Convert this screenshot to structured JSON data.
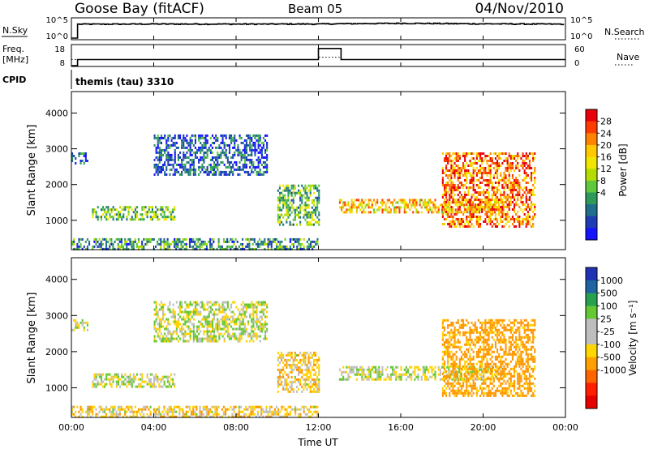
{
  "header": {
    "station": "Goose Bay (fitACF)",
    "beam": "Beam 05",
    "date": "04/Nov/2010"
  },
  "nsky_panel": {
    "label": "N.Sky",
    "left_ticks": [
      "10^5",
      "10^0"
    ],
    "right_ticks": [
      "10^5",
      "10^0"
    ],
    "right_label": "N.Search",
    "right_label_style": "dotted"
  },
  "freq_panel": {
    "label_line1": "Freq.",
    "label_line2": "[MHz]",
    "left_ticks": [
      "18",
      "8"
    ],
    "right_ticks": [
      "60",
      "0"
    ],
    "right_label": "Nave",
    "right_label_style": "dotted",
    "cpid_label": "CPID",
    "cpid_text": "themis (tau) 3310"
  },
  "power_panel": {
    "ylabel": "Slant Range [km]",
    "yticks": [
      "4000",
      "3000",
      "2000",
      "1000"
    ],
    "colorbar_title": "Power [dB]",
    "colorbar_ticks": [
      "28",
      "24",
      "20",
      "16",
      "12",
      "8",
      "4"
    ],
    "colorbar_colors": [
      "#e8000b",
      "#ff3c00",
      "#ff8200",
      "#ffc800",
      "#f2e600",
      "#b4dc00",
      "#5fc83c",
      "#2e9a5a",
      "#1e6e8c",
      "#1e3cb4",
      "#1414ff"
    ]
  },
  "velocity_panel": {
    "ylabel": "Slant Range [km]",
    "yticks": [
      "4000",
      "3000",
      "2000",
      "1000"
    ],
    "colorbar_title": "Velocity [m s⁻¹]",
    "colorbar_ticks": [
      "1000",
      "500",
      "100",
      "25",
      "-25",
      "-100",
      "-500",
      "-1000"
    ],
    "colorbar_colors": [
      "#1e32b4",
      "#1e64a0",
      "#28a050",
      "#64c832",
      "#bebebe",
      "#bebebe",
      "#ffd700",
      "#ffa000",
      "#ff6400",
      "#ff1e00",
      "#e60000"
    ]
  },
  "xaxis": {
    "label": "Time UT",
    "ticks": [
      "00:00",
      "04:00",
      "08:00",
      "12:00",
      "16:00",
      "20:00",
      "00:00"
    ]
  },
  "chart_data": [
    {
      "type": "line",
      "title": "N.Sky / N.Search",
      "xlabel": "Time UT",
      "ylabel": "N.Sky",
      "yscale": "log",
      "ylim": [
        1,
        100000
      ],
      "series": [
        {
          "name": "N.Sky",
          "x": [
            0,
            0.3,
            1,
            4,
            8,
            12,
            16,
            20,
            24
          ],
          "values": [
            1,
            8000,
            8000,
            9000,
            8500,
            9000,
            14000,
            10000,
            8000
          ]
        }
      ]
    },
    {
      "type": "line",
      "title": "Freq. [MHz] / Nave",
      "xlabel": "Time UT",
      "ylabel": "Freq. [MHz]",
      "ylim": [
        8,
        18
      ],
      "series": [
        {
          "name": "Freq.",
          "x": [
            0,
            0.3,
            0.3,
            12.0,
            12.0,
            13.1,
            13.1,
            24
          ],
          "values": [
            8,
            8,
            11,
            11,
            16.5,
            16.5,
            11,
            11
          ]
        },
        {
          "name": "Nave",
          "x": [
            0,
            12.0,
            12.0,
            13.1,
            13.1,
            24
          ],
          "values": [
            18,
            18,
            25,
            25,
            18,
            18
          ]
        }
      ]
    },
    {
      "type": "heatmap",
      "title": "Power [dB]",
      "xlabel": "Time UT",
      "ylabel": "Slant Range [km]",
      "xlim": [
        0,
        24
      ],
      "ylim": [
        180,
        4600
      ],
      "clim": [
        0,
        30
      ],
      "regions": [
        {
          "x0": 0,
          "x1": 12,
          "y0": 200,
          "y1": 500,
          "value": 9
        },
        {
          "x0": 0,
          "x1": 0.8,
          "y0": 2600,
          "y1": 2900,
          "value": 5
        },
        {
          "x0": 4,
          "x1": 9.5,
          "y0": 2300,
          "y1": 3400,
          "value": 5
        },
        {
          "x0": 1,
          "x1": 5,
          "y0": 1000,
          "y1": 1400,
          "value": 12
        },
        {
          "x0": 10,
          "x1": 12,
          "y0": 900,
          "y1": 2000,
          "value": 12
        },
        {
          "x0": 13,
          "x1": 21,
          "y0": 1200,
          "y1": 1600,
          "value": 20
        },
        {
          "x0": 18,
          "x1": 22.5,
          "y0": 800,
          "y1": 2900,
          "value": 24
        }
      ]
    },
    {
      "type": "heatmap",
      "title": "Velocity [m s-1]",
      "xlabel": "Time UT",
      "ylabel": "Slant Range [km]",
      "xlim": [
        0,
        24
      ],
      "ylim": [
        180,
        4600
      ],
      "clim": [
        -1000,
        1000
      ],
      "regions": [
        {
          "x0": 0,
          "x1": 12,
          "y0": 200,
          "y1": 500,
          "value": -60
        },
        {
          "x0": 0,
          "x1": 0.8,
          "y0": 2600,
          "y1": 2900,
          "value": 0
        },
        {
          "x0": 4,
          "x1": 9.5,
          "y0": 2300,
          "y1": 3400,
          "value": 0
        },
        {
          "x0": 1,
          "x1": 5,
          "y0": 1000,
          "y1": 1400,
          "value": 0
        },
        {
          "x0": 10,
          "x1": 12,
          "y0": 900,
          "y1": 2000,
          "value": -60
        },
        {
          "x0": 13,
          "x1": 21,
          "y0": 1200,
          "y1": 1600,
          "value": 0
        },
        {
          "x0": 18,
          "x1": 22.5,
          "y0": 800,
          "y1": 2900,
          "value": -150
        }
      ]
    }
  ]
}
